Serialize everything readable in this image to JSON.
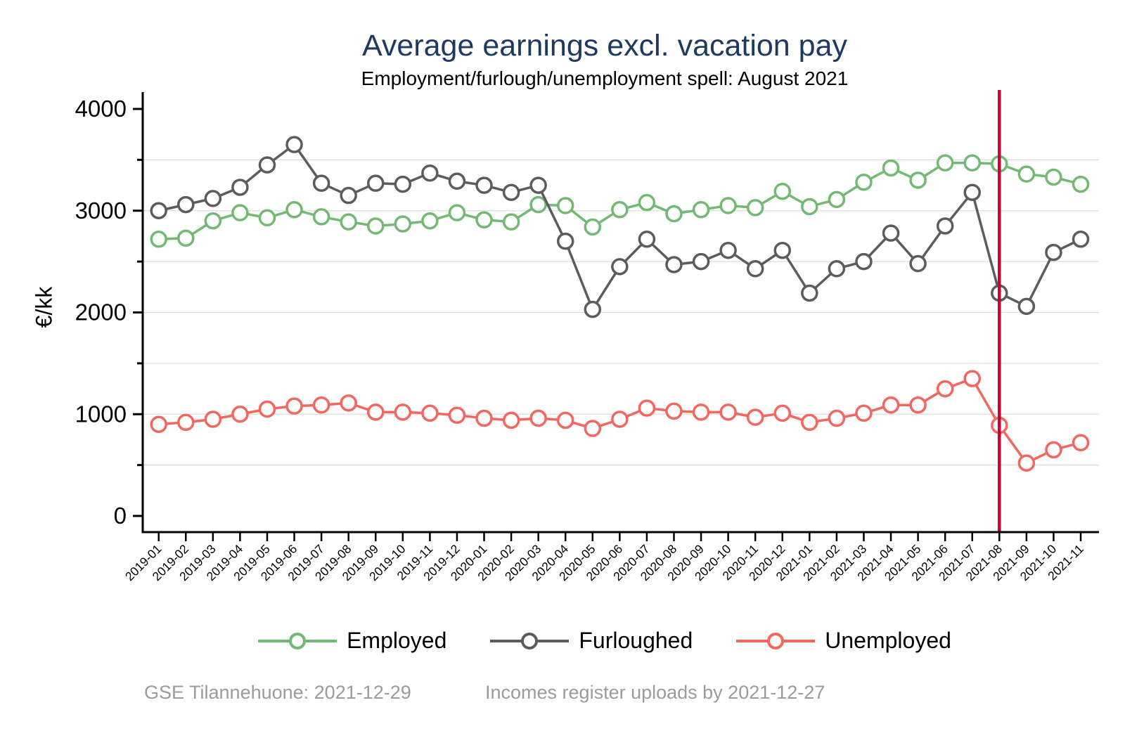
{
  "title": "Average earnings excl. vacation pay",
  "subtitle": "Employment/furlough/unemployment spell: August 2021",
  "footer": {
    "left": "GSE Tilannehuone: 2021-12-29",
    "right": "Incomes register uploads by 2021-12-27"
  },
  "colors": {
    "title": "#1F3A60",
    "gridline": "#DEDEDE",
    "axis": "#000000",
    "footer_text": "#9B9B9B",
    "highlight_line": "#C10534"
  },
  "chart_data": {
    "type": "line",
    "title": "Average earnings excl. vacation pay",
    "subtitle": "Employment/furlough/unemployment spell: August 2021",
    "xlabel": "",
    "ylabel": "€/kk",
    "ylim": [
      0,
      4000
    ],
    "ytick_major": [
      0,
      1000,
      2000,
      3000,
      4000
    ],
    "ytick_minor": [
      500,
      1500,
      2500,
      3500
    ],
    "grid": true,
    "grid_interval": 500,
    "legend_position": "bottom",
    "marker": "hollow-circle",
    "categories": [
      "2019-01",
      "2019-02",
      "2019-03",
      "2019-04",
      "2019-05",
      "2019-06",
      "2019-07",
      "2019-08",
      "2019-09",
      "2019-10",
      "2019-11",
      "2019-12",
      "2020-01",
      "2020-02",
      "2020-03",
      "2020-04",
      "2020-05",
      "2020-06",
      "2020-07",
      "2020-08",
      "2020-09",
      "2020-10",
      "2020-11",
      "2020-12",
      "2021-01",
      "2021-02",
      "2021-03",
      "2021-04",
      "2021-05",
      "2021-06",
      "2021-07",
      "2021-08",
      "2021-09",
      "2021-10",
      "2021-11"
    ],
    "series": [
      {
        "name": "Employed",
        "color": "#73B973",
        "values": [
          2720,
          2730,
          2900,
          2980,
          2930,
          3010,
          2940,
          2890,
          2850,
          2870,
          2900,
          2980,
          2910,
          2890,
          3060,
          3050,
          2840,
          3010,
          3080,
          2970,
          3010,
          3050,
          3030,
          3190,
          3040,
          3110,
          3280,
          3420,
          3300,
          3470,
          3470,
          3460,
          3360,
          3330,
          3260
        ]
      },
      {
        "name": "Furloughed",
        "color": "#5C5C5C",
        "values": [
          3000,
          3060,
          3120,
          3230,
          3450,
          3650,
          3270,
          3150,
          3270,
          3260,
          3370,
          3290,
          3250,
          3180,
          3250,
          2700,
          2030,
          2450,
          2720,
          2470,
          2500,
          2610,
          2430,
          2610,
          2190,
          2430,
          2500,
          2780,
          2480,
          2850,
          3180,
          2190,
          2060,
          2590,
          2720
        ]
      },
      {
        "name": "Unemployed",
        "color": "#F5665E",
        "values": [
          900,
          920,
          950,
          1000,
          1050,
          1080,
          1090,
          1110,
          1020,
          1020,
          1010,
          990,
          960,
          940,
          960,
          940,
          860,
          950,
          1060,
          1030,
          1020,
          1020,
          970,
          1010,
          920,
          960,
          1010,
          1090,
          1090,
          1250,
          1350,
          890,
          520,
          650,
          720
        ]
      }
    ],
    "vline": {
      "category": "2021-08",
      "color": "#C10534"
    }
  }
}
